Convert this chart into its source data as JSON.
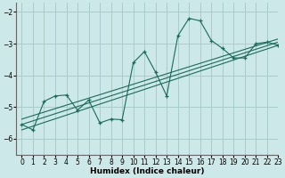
{
  "xlabel": "Humidex (Indice chaleur)",
  "xlim": [
    -0.5,
    23
  ],
  "ylim": [
    -6.5,
    -1.7
  ],
  "yticks": [
    -6,
    -5,
    -4,
    -3,
    -2
  ],
  "xticks": [
    0,
    1,
    2,
    3,
    4,
    5,
    6,
    7,
    8,
    9,
    10,
    11,
    12,
    13,
    14,
    15,
    16,
    17,
    18,
    19,
    20,
    21,
    22,
    23
  ],
  "bg_color": "#cce8e8",
  "grid_color": "#aacccc",
  "line_color": "#1a6b5a",
  "main_x": [
    0,
    1,
    2,
    3,
    4,
    5,
    6,
    7,
    8,
    9,
    10,
    11,
    12,
    13,
    14,
    15,
    16,
    17,
    18,
    19,
    20,
    21,
    22,
    23
  ],
  "main_y": [
    -5.55,
    -5.72,
    -4.82,
    -4.65,
    -4.62,
    -5.1,
    -4.78,
    -5.5,
    -5.38,
    -5.4,
    -3.6,
    -3.25,
    -3.9,
    -4.65,
    -2.75,
    -2.2,
    -2.28,
    -2.9,
    -3.15,
    -3.45,
    -3.45,
    -3.0,
    -2.95,
    -3.05
  ],
  "line1_x": [
    0,
    23
  ],
  "line1_y": [
    -5.55,
    -2.95
  ],
  "line2_x": [
    0,
    23
  ],
  "line2_y": [
    -5.72,
    -3.05
  ],
  "line3_x": [
    0,
    23
  ],
  "line3_y": [
    -5.38,
    -2.85
  ]
}
